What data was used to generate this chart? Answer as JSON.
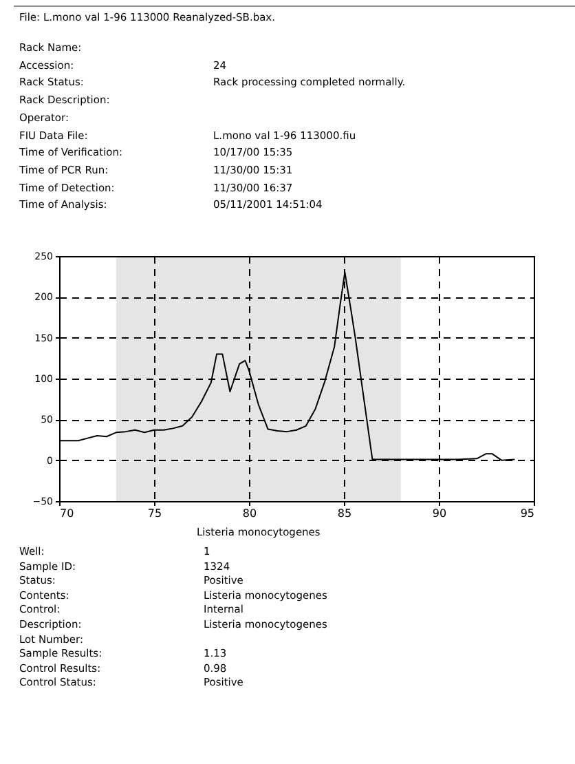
{
  "chart_data": {
    "type": "line",
    "x": [
      70,
      71,
      71.5,
      72,
      72.5,
      73,
      73.5,
      74,
      74.5,
      75,
      75.5,
      76,
      76.5,
      77,
      77.5,
      78,
      78.3,
      78.6,
      79,
      79.5,
      79.8,
      80,
      80.5,
      81,
      81.5,
      82,
      82.5,
      83,
      83.5,
      84,
      84.5,
      84.8,
      85.05,
      85.4,
      85.6,
      86.5,
      87,
      88,
      89,
      90,
      91,
      92,
      92.5,
      92.8,
      93.3,
      94
    ],
    "series": [
      {
        "color": "#000000",
        "values": [
          24,
          24,
          27,
          30,
          29,
          34,
          35,
          37,
          34,
          37,
          37,
          39,
          42,
          53,
          72,
          95,
          130,
          130,
          84,
          118,
          122,
          110,
          68,
          38,
          36,
          35,
          37,
          42,
          63,
          97,
          139,
          190,
          230,
          180,
          150,
          1,
          1,
          1,
          1,
          1,
          1,
          2,
          8,
          8,
          0,
          1
        ]
      }
    ],
    "xlim": [
      70,
      95
    ],
    "xticks": [
      70,
      75,
      80,
      85,
      90,
      95
    ],
    "ylim": [
      -50,
      250
    ],
    "yticks": [
      -50,
      0,
      50,
      100,
      150,
      200,
      250
    ],
    "grid": true,
    "line_style": "solid",
    "marker": "none",
    "bands": [
      {
        "axis": "x",
        "from": 73,
        "to": 88,
        "label": "Listeria monocytogenes",
        "color": "#000000"
      }
    ],
    "annotations": [
      "File: L.mono val 1-96 113000 Reanalyzed-SB.bax.",
      "Rack Name:",
      "Accession:",
      "24",
      "Rack Status:",
      "Rack processing completed normally.",
      "Rack Description:",
      "Operator:",
      "FIU Data File:",
      "L.mono val 1-96 113000.fiu",
      "Time of Verification:",
      "10/17/00 15:35",
      "Time of PCR Run:",
      "11/30/00 15:31",
      "Time of Detection:",
      "11/30/00 16:37",
      "Time of Analysis:",
      "05/11/2001 14:51:04",
      "Well:",
      "1",
      "Sample ID:",
      "1324",
      "Status:",
      "Positive",
      "Contents:",
      "Listeria monocytogenes",
      "Control:",
      "Internal",
      "Description:",
      "Listeria monocytogenes",
      "Lot Number:",
      "Sample Results:",
      "1.13",
      "Control Results:",
      "0.98",
      "Control Status:",
      "Positive"
    ]
  }
}
